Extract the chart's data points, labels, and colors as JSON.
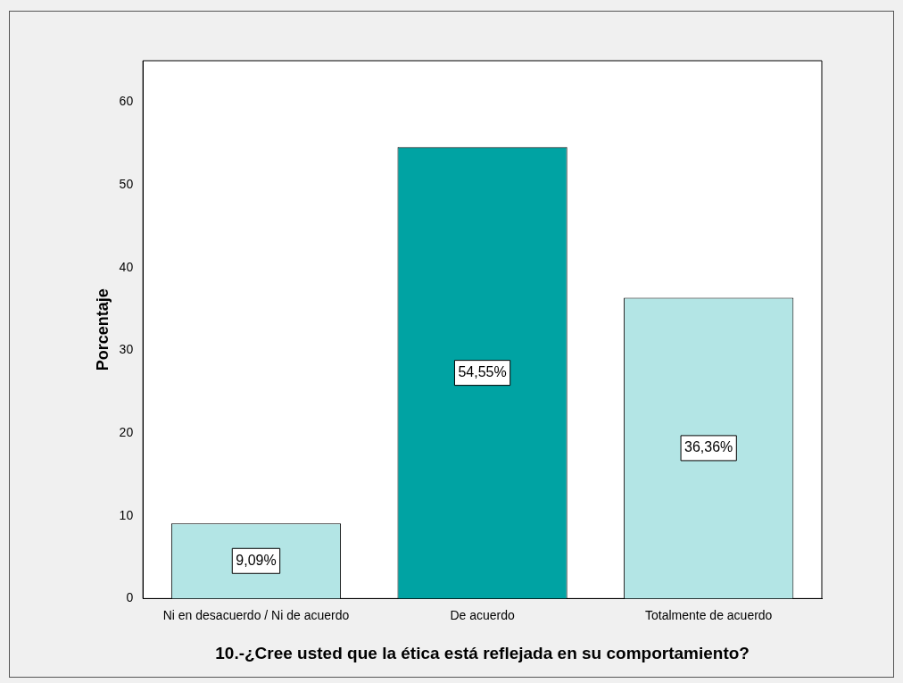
{
  "chart_data": {
    "type": "bar",
    "categories": [
      "Ni en desacuerdo / Ni de acuerdo",
      "De acuerdo",
      "Totalmente de acuerdo"
    ],
    "values": [
      9.09,
      54.55,
      36.36
    ],
    "colors": [
      "#b3e5e5",
      "#00a3a3",
      "#b3e5e5"
    ],
    "value_labels": [
      "9,09%",
      "54,55%",
      "36,36%"
    ],
    "ylim": [
      0,
      65
    ],
    "yticks": [
      0,
      10,
      20,
      30,
      40,
      50,
      60
    ],
    "ylabel": "Porcentaje",
    "xlabel": "10.-¿Cree usted que la ética está reflejada en su comportamiento?",
    "grid": false,
    "legend": false
  }
}
